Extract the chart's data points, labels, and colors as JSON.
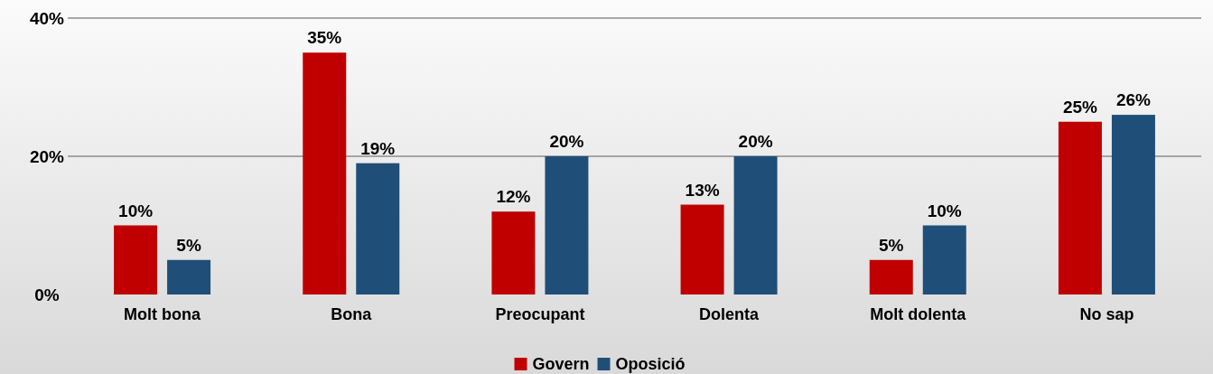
{
  "chart_data": {
    "type": "bar",
    "categories": [
      "Molt bona",
      "Bona",
      "Preocupant",
      "Dolenta",
      "Molt dolenta",
      "No sap"
    ],
    "series": [
      {
        "name": "Govern",
        "color": "#c00000",
        "values": [
          10,
          35,
          12,
          13,
          5,
          25
        ],
        "value_labels": [
          "10%",
          "35%",
          "12%",
          "13%",
          "5%",
          "25%"
        ]
      },
      {
        "name": "Oposició",
        "color": "#1f4e79",
        "values": [
          5,
          19,
          20,
          20,
          10,
          26
        ],
        "value_labels": [
          "5%",
          "19%",
          "20%",
          "20%",
          "10%",
          "26%"
        ]
      }
    ],
    "ylim": [
      0,
      40
    ],
    "yticks": [
      {
        "value": 0,
        "label": "0%"
      },
      {
        "value": 20,
        "label": "20%"
      },
      {
        "value": 40,
        "label": "40%"
      }
    ],
    "grid": "y",
    "legend": "bottom"
  }
}
